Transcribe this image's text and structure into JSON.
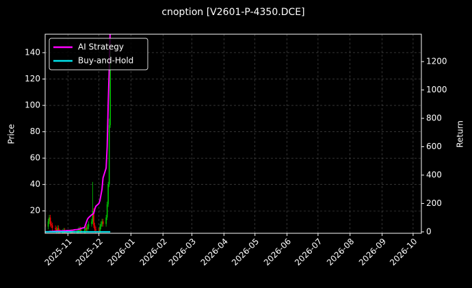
{
  "chart_data": {
    "type": "candlestick",
    "title": "cnoption [V2601-P-4350.DCE]",
    "ylabel": "Price",
    "y2label": "Return",
    "x": [
      "2025-10-10",
      "2025-10-13",
      "2025-10-14",
      "2025-10-15",
      "2025-10-16",
      "2025-10-17",
      "2025-10-20",
      "2025-10-21",
      "2025-10-22",
      "2025-10-23",
      "2025-10-24",
      "2025-10-27",
      "2025-10-28",
      "2025-10-29",
      "2025-10-30",
      "2025-10-31",
      "2025-11-03",
      "2025-11-04",
      "2025-11-05",
      "2025-11-06",
      "2025-11-07",
      "2025-11-10",
      "2025-11-11",
      "2025-11-12",
      "2025-11-13",
      "2025-11-14",
      "2025-11-17",
      "2025-11-18",
      "2025-11-19",
      "2025-11-20",
      "2025-11-21",
      "2025-11-24",
      "2025-11-25",
      "2025-11-26",
      "2025-11-27",
      "2025-11-28",
      "2025-12-01",
      "2025-12-02",
      "2025-12-03",
      "2025-12-04",
      "2025-12-05",
      "2025-12-08",
      "2025-12-09",
      "2025-12-10",
      "2025-12-11",
      "2025-12-12"
    ],
    "open": [
      10,
      8,
      12,
      15,
      10,
      9,
      7,
      6,
      5,
      7,
      4,
      3,
      4,
      5,
      3,
      2,
      3,
      3,
      4,
      3,
      2,
      3,
      4,
      5,
      6,
      4,
      5,
      5,
      7,
      6,
      8,
      10,
      12,
      20,
      9,
      6,
      5,
      4,
      8,
      10,
      12,
      10,
      15,
      25,
      40,
      85
    ],
    "high": [
      12,
      14,
      17,
      17,
      12,
      11,
      9,
      8,
      9,
      9,
      6,
      6,
      7,
      7,
      5,
      5,
      5,
      6,
      6,
      5,
      5,
      6,
      7,
      8,
      8,
      7,
      7,
      9,
      9,
      10,
      12,
      14,
      42,
      22,
      11,
      8,
      7,
      10,
      12,
      14,
      14,
      17,
      27,
      42,
      90,
      152
    ],
    "low": [
      6,
      6,
      10,
      8,
      7,
      5,
      4,
      3,
      3,
      2,
      1,
      1,
      2,
      1,
      0,
      0,
      1,
      1,
      1,
      0,
      0,
      1,
      2,
      3,
      2,
      2,
      3,
      3,
      4,
      4,
      6,
      8,
      10,
      7,
      4,
      3,
      2,
      2,
      6,
      8,
      8,
      8,
      13,
      23,
      38,
      83
    ],
    "close": [
      8,
      12,
      15,
      10,
      9,
      7,
      6,
      5,
      7,
      4,
      3,
      4,
      5,
      3,
      2,
      3,
      3,
      4,
      3,
      2,
      3,
      4,
      5,
      6,
      4,
      5,
      5,
      7,
      6,
      8,
      10,
      12,
      20,
      9,
      6,
      5,
      4,
      8,
      10,
      12,
      10,
      15,
      25,
      40,
      85,
      145
    ],
    "up_color": "#00c800",
    "down_color": "#ff0000",
    "series": [
      {
        "name": "AI Strategy",
        "color": "#ff00ff",
        "axis": "y2",
        "values": [
          0,
          1,
          2,
          3,
          3,
          4,
          5,
          5,
          6,
          6,
          7,
          7,
          8,
          8,
          8,
          9,
          10,
          10,
          11,
          12,
          14,
          16,
          18,
          20,
          22,
          25,
          30,
          50,
          70,
          90,
          100,
          120,
          125,
          130,
          160,
          180,
          200,
          220,
          260,
          300,
          380,
          450,
          600,
          900,
          1150,
          1450
        ]
      },
      {
        "name": "Buy-and-Hold",
        "color": "#00e5ee",
        "axis": "y2",
        "values": [
          0,
          0,
          0,
          0,
          0,
          0,
          0,
          0,
          0,
          0,
          0,
          0,
          0,
          0,
          0,
          0,
          0,
          0,
          0,
          0,
          0,
          0,
          0,
          0,
          0,
          0,
          0,
          0,
          0,
          0,
          0,
          0,
          0,
          0,
          0,
          0,
          0,
          0,
          0,
          0,
          0,
          0,
          0,
          0,
          0,
          0
        ]
      }
    ],
    "xlim": [
      "2025-10-10",
      "2026-10-09"
    ],
    "xticks": [
      "2025-11",
      "2025-12",
      "2026-01",
      "2026-02",
      "2026-03",
      "2026-04",
      "2026-05",
      "2026-06",
      "2026-07",
      "2026-08",
      "2026-09",
      "2026-10"
    ],
    "ylim": [
      3,
      154
    ],
    "yticks": [
      20,
      40,
      60,
      80,
      100,
      120,
      140
    ],
    "y2lim": [
      -10,
      1393
    ],
    "y2ticks": [
      0,
      200,
      400,
      600,
      800,
      1000,
      1200
    ],
    "grid": true,
    "legend": "upper left"
  }
}
